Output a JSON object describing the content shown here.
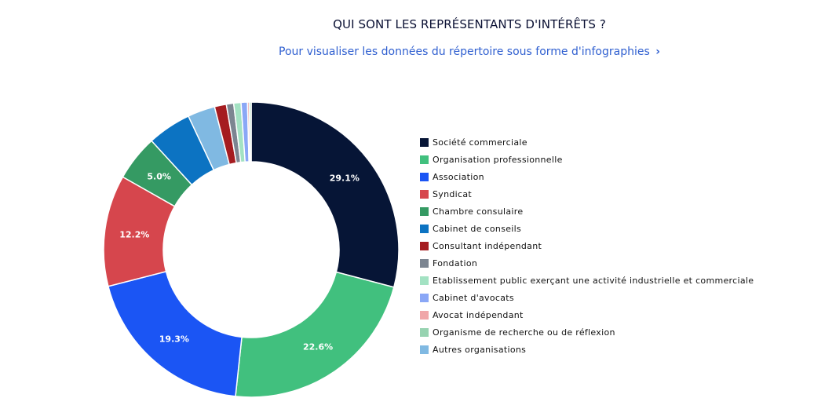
{
  "header": {
    "title": "QUI SONT LES REPRÉSENTANTS D'INTÉRÊTS ?",
    "link_text": "Pour visualiser les données du répertoire sous forme d'infographies",
    "link_chevron": "›"
  },
  "chart_data": {
    "type": "pie",
    "donut": true,
    "title": "",
    "legend_position": "right",
    "slices": [
      {
        "label": "Société commerciale",
        "value": 29.1,
        "display": "29.1%",
        "color": "#061536"
      },
      {
        "label": "Organisation professionnelle",
        "value": 22.6,
        "display": "22.6%",
        "color": "#41c07e"
      },
      {
        "label": "Association",
        "value": 19.3,
        "display": "19.3%",
        "color": "#1b55f4"
      },
      {
        "label": "Syndicat",
        "value": 12.2,
        "display": "12.2%",
        "color": "#d6464d"
      },
      {
        "label": "Chambre consulaire",
        "value": 5.0,
        "display": "5.0%",
        "color": "#359a63"
      },
      {
        "label": "Cabinet de conseils",
        "value": 4.8,
        "display": "",
        "color": "#0c73c2"
      },
      {
        "label": "Consultant indépendant",
        "value": 1.3,
        "display": "",
        "color": "#a51c20"
      },
      {
        "label": "Fondation",
        "value": 0.8,
        "display": "",
        "color": "#7c8591"
      },
      {
        "label": "Etablissement public exerçant une activité industrielle et commerciale",
        "value": 0.8,
        "display": "",
        "color": "#a3e2c3"
      },
      {
        "label": "Cabinet d'avocats",
        "value": 0.7,
        "display": "",
        "color": "#8aa7f6"
      },
      {
        "label": "Avocat indépendant",
        "value": 0.2,
        "display": "",
        "color": "#f0a7a9"
      },
      {
        "label": "Organisme de recherche ou de réflexion",
        "value": 0.2,
        "display": "",
        "color": "#97d3b1"
      },
      {
        "label": "Autres organisations",
        "value": 3.0,
        "display": "",
        "color": "#80b9e2"
      }
    ],
    "legend_order": [
      0,
      1,
      2,
      3,
      4,
      5,
      6,
      7,
      8,
      9,
      10,
      11,
      12
    ],
    "slice_draw_order": [
      0,
      1,
      2,
      3,
      4,
      5,
      12,
      6,
      7,
      8,
      9,
      10,
      11
    ]
  }
}
